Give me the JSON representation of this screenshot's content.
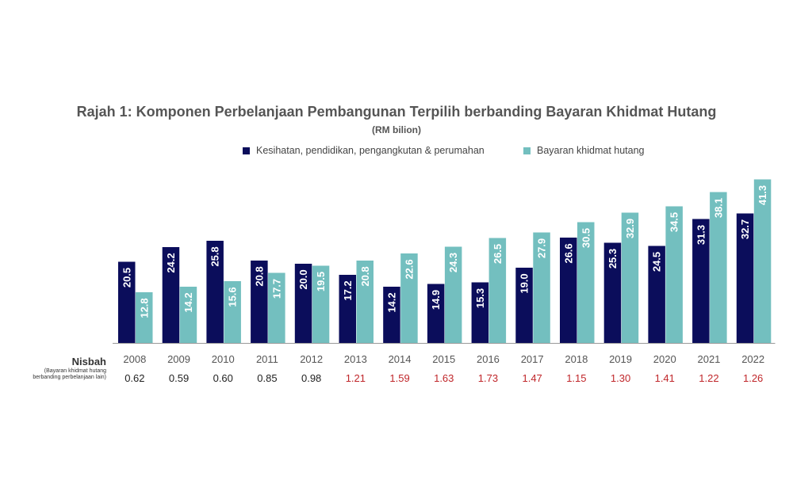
{
  "colors": {
    "series1": "#0b0d5b",
    "series2": "#73bfbf",
    "ratio_low": "#222222",
    "ratio_high": "#c0262a",
    "axis": "#999999",
    "tick": "#555555"
  },
  "ratio": {
    "label": "Nisbah",
    "note_line1": "(Bayaran khidmat hutang",
    "note_line2": "berbanding perbelanjaan lain)",
    "values": [
      "0.62",
      "0.59",
      "0.60",
      "0.85",
      "0.98",
      "1.21",
      "1.59",
      "1.63",
      "1.73",
      "1.47",
      "1.15",
      "1.30",
      "1.41",
      "1.22",
      "1.26"
    ]
  },
  "chart_data": {
    "type": "bar",
    "title": "Rajah 1: Komponen Perbelanjaan Pembangunan Terpilih berbanding Bayaran Khidmat Hutang",
    "subtitle": "(RM bilion)",
    "xlabel": "",
    "ylabel": "",
    "ylim": [
      0,
      42
    ],
    "grid": false,
    "legend_position": "top-center",
    "categories": [
      "2008",
      "2009",
      "2010",
      "2011",
      "2012",
      "2013",
      "2014",
      "2015",
      "2016",
      "2017",
      "2018",
      "2019",
      "2020",
      "2021",
      "2022"
    ],
    "series": [
      {
        "name": "Kesihatan, pendidikan, pengangkutan & perumahan",
        "values": [
          20.5,
          24.2,
          25.8,
          20.8,
          20.0,
          17.2,
          14.2,
          14.9,
          15.3,
          19.0,
          26.6,
          25.3,
          24.5,
          31.3,
          32.7
        ],
        "labels": [
          "20.5",
          "24.2",
          "25.8",
          "20.8",
          "20.0",
          "17.2",
          "14.2",
          "14.9",
          "15.3",
          "19.0",
          "26.6",
          "25.3",
          "24.5",
          "31.3",
          "32.7"
        ]
      },
      {
        "name": "Bayaran khidmat hutang",
        "values": [
          12.8,
          14.2,
          15.6,
          17.7,
          19.5,
          20.8,
          22.6,
          24.3,
          26.5,
          27.9,
          30.5,
          32.9,
          34.5,
          38.1,
          41.3
        ],
        "labels": [
          "12.8",
          "14.2",
          "15.6",
          "17.7",
          "19.5",
          "20.8",
          "22.6",
          "24.3",
          "26.5",
          "27.9",
          "30.5",
          "32.9",
          "34.5",
          "38.1",
          "41.3"
        ]
      }
    ]
  }
}
